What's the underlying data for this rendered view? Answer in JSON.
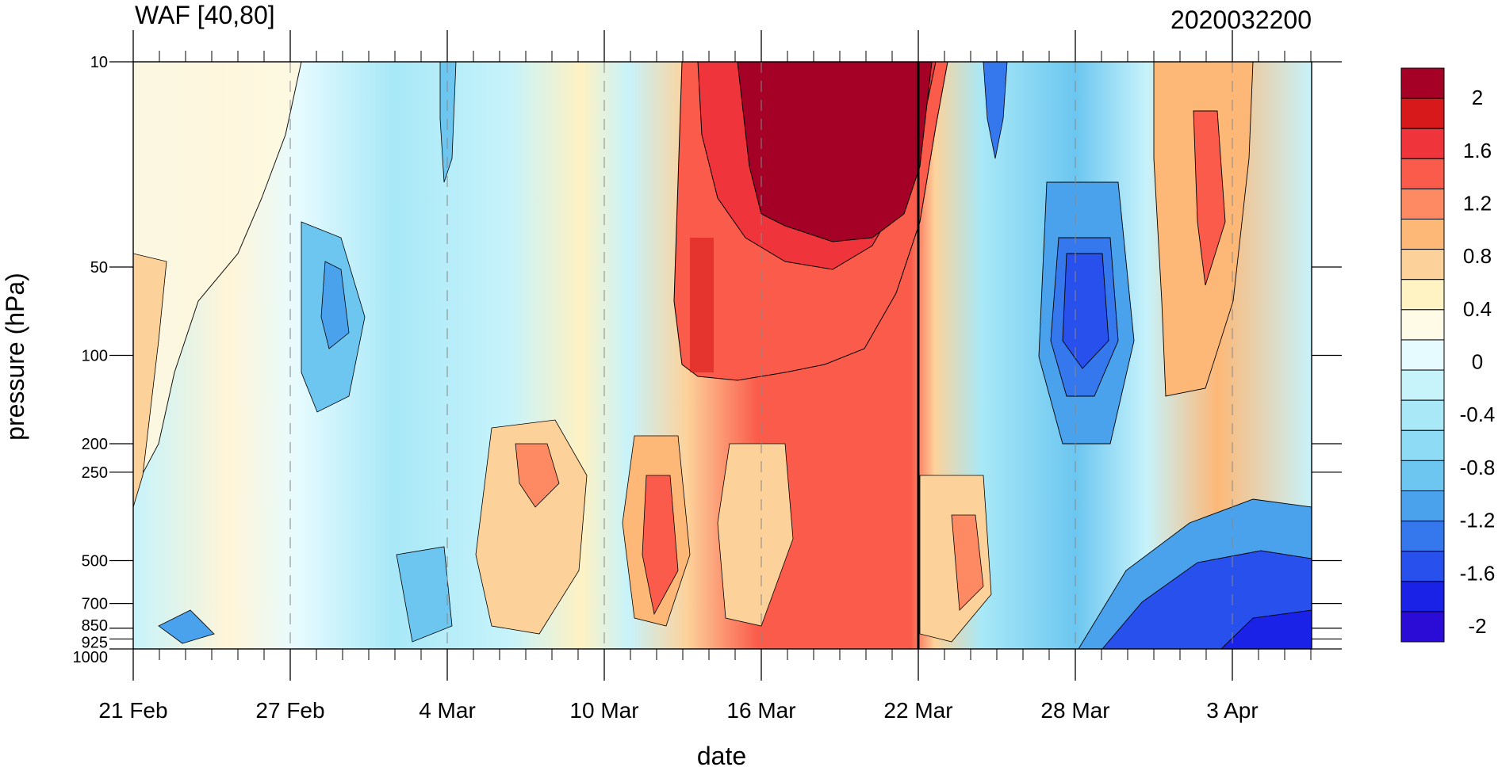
{
  "chart_data": {
    "type": "heatmap",
    "title_left": "WAF [40,80]",
    "title_right": "2020032200",
    "xlabel": "date",
    "ylabel": "pressure (hPa)",
    "x_axis": {
      "start_date": "21 Feb",
      "end_date": "5 Apr",
      "ticks": [
        "21 Feb",
        "27 Feb",
        "4 Mar",
        "10 Mar",
        "16 Mar",
        "22 Mar",
        "28 Mar",
        "3 Apr"
      ],
      "tick_day_index": [
        0,
        6,
        12,
        18,
        24,
        30,
        36,
        42
      ],
      "minor_tick_step_days": 1,
      "xlim_days": [
        0,
        45
      ]
    },
    "y_axis": {
      "scale": "log",
      "reversed": true,
      "ticks": [
        10,
        50,
        100,
        200,
        250,
        500,
        700,
        850,
        925,
        1000
      ],
      "ylim": [
        10,
        1000
      ]
    },
    "vertical_marker_day": 30,
    "dashed_gridlines": true,
    "colorbar": {
      "labels": [
        "2",
        "1.6",
        "1.2",
        "0.8",
        "0.4",
        "0",
        "-0.4",
        "-0.8",
        "-1.2",
        "-1.6",
        "-2"
      ],
      "colors": [
        "#a50026",
        "#d7191c",
        "#f0343c",
        "#fa5b4a",
        "#fd8a62",
        "#fdb877",
        "#fdd29a",
        "#fff2c3",
        "#fffbe6",
        "#e6fbff",
        "#c7f3fb",
        "#a8e8f7",
        "#8ddbf4",
        "#6cc6f0",
        "#4aa2ec",
        "#3578ee",
        "#2750ec",
        "#1a22e8",
        "#2b0bd6"
      ]
    },
    "cells": [
      {
        "day0": 0,
        "day1": 6,
        "p0": 10,
        "p1": 50,
        "value": 0.1
      },
      {
        "day0": 6,
        "day1": 12,
        "p0": 10,
        "p1": 200,
        "value": -0.4
      },
      {
        "day0": 12,
        "day1": 18,
        "p0": 10,
        "p1": 200,
        "value": -0.3
      },
      {
        "day0": 18,
        "day1": 22,
        "p0": 10,
        "p1": 100,
        "value": 0.7
      },
      {
        "day0": 22,
        "day1": 30,
        "p0": 10,
        "p1": 50,
        "value": 2.0
      },
      {
        "day0": 30,
        "day1": 34,
        "p0": 10,
        "p1": 100,
        "value": -0.6
      },
      {
        "day0": 34,
        "day1": 40,
        "p0": 50,
        "p1": 250,
        "value": -1.6
      },
      {
        "day0": 40,
        "day1": 45,
        "p0": 10,
        "p1": 100,
        "value": 0.8
      },
      {
        "day0": 14,
        "day1": 24,
        "p0": 200,
        "p1": 700,
        "value": 0.6
      },
      {
        "day0": 38,
        "day1": 45,
        "p0": 500,
        "p1": 1000,
        "value": -1.8
      }
    ]
  }
}
